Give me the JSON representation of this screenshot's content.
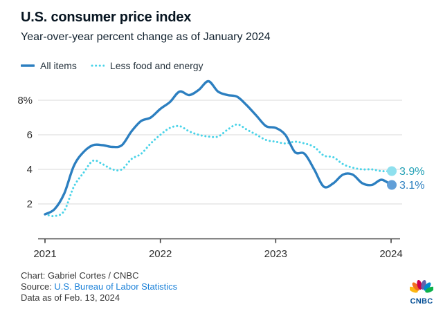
{
  "header": {
    "title": "U.S. consumer price index",
    "subtitle": "Year-over-year percent change as of January 2024"
  },
  "legend": [
    {
      "label": "All items",
      "style": "solid",
      "color": "#2c7fc0"
    },
    {
      "label": "Less food and energy",
      "style": "dotted",
      "color": "#49d3e8"
    }
  ],
  "chart_data": {
    "type": "line",
    "title": "U.S. consumer price index",
    "subtitle": "Year-over-year percent change as of January 2024",
    "x_start": "2021-01",
    "x_end": "2024-01",
    "x_interval": "monthly",
    "x_ticks": [
      "2021",
      "2022",
      "2023",
      "2024"
    ],
    "y_ticks": [
      {
        "v": 2,
        "label": "2"
      },
      {
        "v": 4,
        "label": "4"
      },
      {
        "v": 6,
        "label": "6"
      },
      {
        "v": 8,
        "label": "8%"
      }
    ],
    "ylim": [
      0,
      9.6
    ],
    "grid": "horizontal",
    "legend_position": "top-left",
    "series": [
      {
        "name": "All items",
        "style": "solid",
        "color": "#2c7fc0",
        "end_label": "3.1%",
        "end_label_color": "#2c7fc0",
        "end_dot_color": "#619fd8",
        "values": [
          1.4,
          1.7,
          2.6,
          4.2,
          5.0,
          5.4,
          5.4,
          5.3,
          5.4,
          6.2,
          6.8,
          7.0,
          7.5,
          7.9,
          8.5,
          8.3,
          8.6,
          9.1,
          8.5,
          8.3,
          8.2,
          7.7,
          7.1,
          6.5,
          6.4,
          6.0,
          5.0,
          4.9,
          4.0,
          3.0,
          3.2,
          3.7,
          3.7,
          3.2,
          3.1,
          3.4,
          3.1
        ]
      },
      {
        "name": "Less food and energy",
        "style": "dotted",
        "color": "#49d3e8",
        "end_label": "3.9%",
        "end_label_color": "#1d9eb4",
        "end_dot_color": "#8fe0ee",
        "values": [
          1.4,
          1.3,
          1.6,
          3.0,
          3.8,
          4.5,
          4.3,
          4.0,
          4.0,
          4.6,
          4.9,
          5.5,
          6.0,
          6.4,
          6.5,
          6.2,
          6.0,
          5.9,
          5.9,
          6.3,
          6.6,
          6.3,
          6.0,
          5.7,
          5.6,
          5.5,
          5.6,
          5.5,
          5.3,
          4.8,
          4.7,
          4.3,
          4.1,
          4.0,
          4.0,
          3.9,
          3.9
        ]
      }
    ]
  },
  "footer": {
    "credit": "Chart: Gabriel Cortes / CNBC",
    "source_prefix": "Source: ",
    "source_link": "U.S. Bureau of Labor Statistics",
    "data_as_of": "Data as of Feb. 13, 2024",
    "logo_text": "CNBC"
  },
  "colors": {
    "grid": "#d9d9d9",
    "axis": "#3f3f3f",
    "tick_text": "#2e2e2e",
    "footer_text": "#3a3a3a",
    "link": "#1a80d8",
    "logo_text": "#004c94",
    "logo_feathers": [
      "#FCB711",
      "#F37021",
      "#CC004C",
      "#6460AA",
      "#0089CF",
      "#0DB14B"
    ]
  }
}
